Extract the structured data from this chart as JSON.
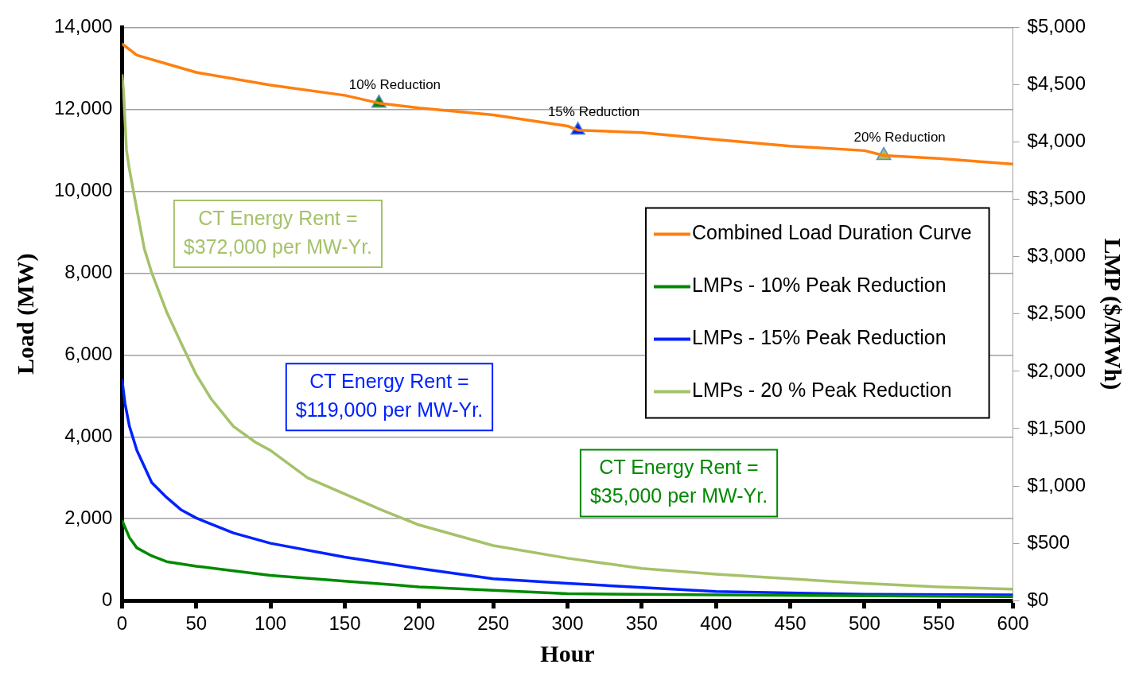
{
  "chart_data": {
    "type": "line",
    "xlabel": "Hour",
    "ylabel": "Load (MW)",
    "y2label": "LMP ($/MWh)",
    "xlim": [
      0,
      600
    ],
    "xticks": [
      0,
      50,
      100,
      150,
      200,
      250,
      300,
      350,
      400,
      450,
      500,
      550,
      600
    ],
    "ylim": [
      0,
      14000
    ],
    "yticks": [
      0,
      {
        "value": 2000,
        "label": "2,000"
      },
      {
        "value": 4000,
        "label": "4,000"
      },
      {
        "value": 6000,
        "label": "6,000"
      },
      {
        "value": 8000,
        "label": "8,000"
      },
      {
        "value": 10000,
        "label": "10,000"
      },
      {
        "value": 12000,
        "label": "12,000"
      },
      {
        "value": 14000,
        "label": "14,000"
      }
    ],
    "y2lim": [
      0,
      5000
    ],
    "y2ticks": [
      {
        "value": 0,
        "label": "$0"
      },
      {
        "value": 500,
        "label": "$500"
      },
      {
        "value": 1000,
        "label": "$1,000"
      },
      {
        "value": 1500,
        "label": "$1,500"
      },
      {
        "value": 2000,
        "label": "$2,000"
      },
      {
        "value": 2500,
        "label": "$2,500"
      },
      {
        "value": 3000,
        "label": "$3,000"
      },
      {
        "value": 3500,
        "label": "$3,500"
      },
      {
        "value": 4000,
        "label": "$4,000"
      },
      {
        "value": 4500,
        "label": "$4,500"
      },
      {
        "value": 5000,
        "label": "$5,000"
      }
    ],
    "grid": "y",
    "legend": "right",
    "marker": "none",
    "line_style": "solid",
    "series": [
      {
        "name": "Combined Load Duration Curve",
        "color": "#ff7f0e",
        "x": [
          0,
          10,
          50,
          100,
          150,
          173,
          200,
          250,
          300,
          307,
          350,
          400,
          450,
          500,
          513,
          550,
          600
        ],
        "values": [
          13600,
          13320,
          12900,
          12590,
          12340,
          12150,
          12030,
          11860,
          11590,
          11490,
          11430,
          11260,
          11100,
          10990,
          10870,
          10800,
          10660
        ]
      },
      {
        "name": "LMPs - 10% Peak Reduction",
        "color": "#008a00",
        "axis": "y2",
        "x": [
          0,
          5,
          10,
          20,
          30,
          50,
          75,
          100,
          150,
          200,
          300,
          400,
          600
        ],
        "values": [
          700,
          550,
          460,
          390,
          340,
          300,
          260,
          220,
          170,
          120,
          60,
          50,
          35
        ]
      },
      {
        "name": "LMPs - 15% Peak Reduction",
        "color": "#0022ff",
        "axis": "y2",
        "x": [
          0,
          2,
          5,
          10,
          15,
          20,
          30,
          40,
          50,
          75,
          100,
          150,
          200,
          250,
          300,
          400,
          500,
          600
        ],
        "values": [
          1930,
          1720,
          1520,
          1310,
          1170,
          1030,
          900,
          790,
          720,
          590,
          500,
          380,
          280,
          190,
          150,
          80,
          55,
          50
        ]
      },
      {
        "name": "LMPs - 20 % Peak Reduction",
        "color": "#a5c26a",
        "axis": "y2",
        "x": [
          0,
          1,
          3,
          5,
          10,
          15,
          20,
          30,
          40,
          50,
          60,
          75,
          90,
          100,
          125,
          150,
          175,
          200,
          250,
          300,
          350,
          400,
          450,
          500,
          550,
          600
        ],
        "values": [
          4590,
          4450,
          3930,
          3760,
          3410,
          3070,
          2860,
          2520,
          2240,
          1970,
          1760,
          1520,
          1380,
          1310,
          1070,
          930,
          790,
          660,
          480,
          370,
          280,
          230,
          190,
          150,
          120,
          100
        ]
      },
      {
        "type": "scatter",
        "marker": "triangle",
        "color": "#008a00",
        "x": [
          173
        ],
        "values": [
          12150
        ]
      },
      {
        "type": "scatter",
        "marker": "triangle",
        "color": "#0022ff",
        "x": [
          307
        ],
        "values": [
          11490
        ]
      },
      {
        "type": "scatter",
        "marker": "triangle",
        "color": "#a5c26a",
        "x": [
          513
        ],
        "values": [
          10870
        ]
      }
    ],
    "annotations": [
      {
        "text": "10% Reduction",
        "x": 173,
        "y": 12150
      },
      {
        "text": "15% Reduction",
        "x": 307,
        "y": 11490
      },
      {
        "text": "20% Reduction",
        "x": 513,
        "y": 10870
      },
      "CT Energy Rent =\n$372,000 per MW-Yr.",
      "CT Energy Rent =\n$119,000 per MW-Yr.",
      "CT Energy Rent =\n$35,000 per MW-Yr."
    ]
  }
}
